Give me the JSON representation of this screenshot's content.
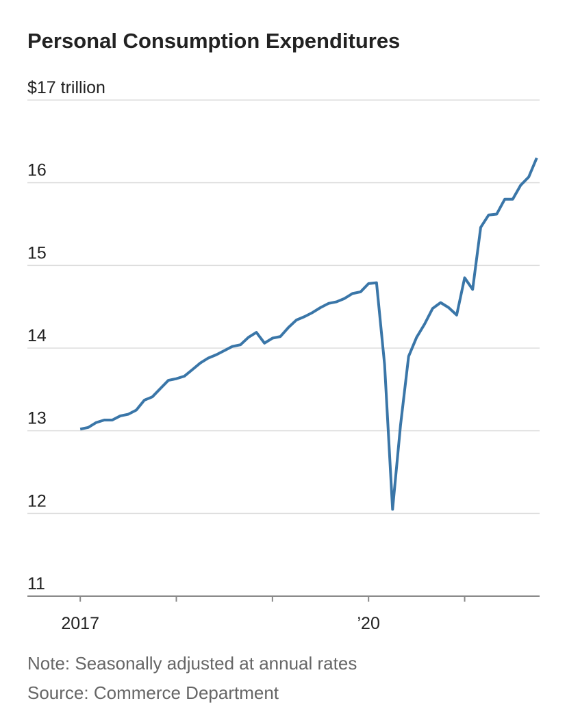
{
  "chart_data": {
    "type": "line",
    "title": "Personal Consumption Expenditures",
    "notes": [
      "Note: Seasonally adjusted at annual rates",
      "Source: Commerce Department"
    ],
    "x": [
      2017,
      2017.083,
      2017.167,
      2017.25,
      2017.333,
      2017.417,
      2017.5,
      2017.583,
      2017.667,
      2017.75,
      2017.833,
      2017.917,
      2018,
      2018.083,
      2018.167,
      2018.25,
      2018.333,
      2018.417,
      2018.5,
      2018.583,
      2018.667,
      2018.75,
      2018.833,
      2018.917,
      2019,
      2019.083,
      2019.167,
      2019.25,
      2019.333,
      2019.417,
      2019.5,
      2019.583,
      2019.667,
      2019.75,
      2019.833,
      2019.917,
      2020,
      2020.083,
      2020.167,
      2020.25,
      2020.333,
      2020.417,
      2020.5,
      2020.583,
      2020.667,
      2020.75,
      2020.833,
      2020.917,
      2021,
      2021.083,
      2021.167,
      2021.25,
      2021.333,
      2021.417,
      2021.5,
      2021.583,
      2021.667,
      2021.75
    ],
    "series": [
      {
        "color": "#3a76a8",
        "values": [
          13.02,
          13.04,
          13.1,
          13.13,
          13.13,
          13.18,
          13.2,
          13.25,
          13.37,
          13.41,
          13.51,
          13.61,
          13.63,
          13.66,
          13.74,
          13.82,
          13.88,
          13.92,
          13.97,
          14.02,
          14.04,
          14.13,
          14.19,
          14.06,
          14.12,
          14.14,
          14.25,
          14.34,
          14.38,
          14.43,
          14.49,
          14.54,
          14.56,
          14.6,
          14.66,
          14.68,
          14.78,
          14.79,
          13.8,
          12.05,
          13.07,
          13.9,
          14.13,
          14.29,
          14.48,
          14.55,
          14.49,
          14.4,
          14.85,
          14.71,
          15.46,
          15.61,
          15.62,
          15.8,
          15.8,
          15.97,
          16.07,
          16.3
        ]
      }
    ],
    "xlim": [
      2016.45,
      2021.78
    ],
    "xticks": [
      2017,
      2018,
      2019,
      2020,
      2021
    ],
    "xtick_labels": [
      2017,
      {
        "value": 2020,
        "label": "’20"
      }
    ],
    "ylim": [
      11,
      17
    ],
    "yticks": [
      11,
      12,
      13,
      14,
      15,
      16,
      {
        "value": 17,
        "label": "$17 trillion"
      }
    ],
    "grid": true
  }
}
